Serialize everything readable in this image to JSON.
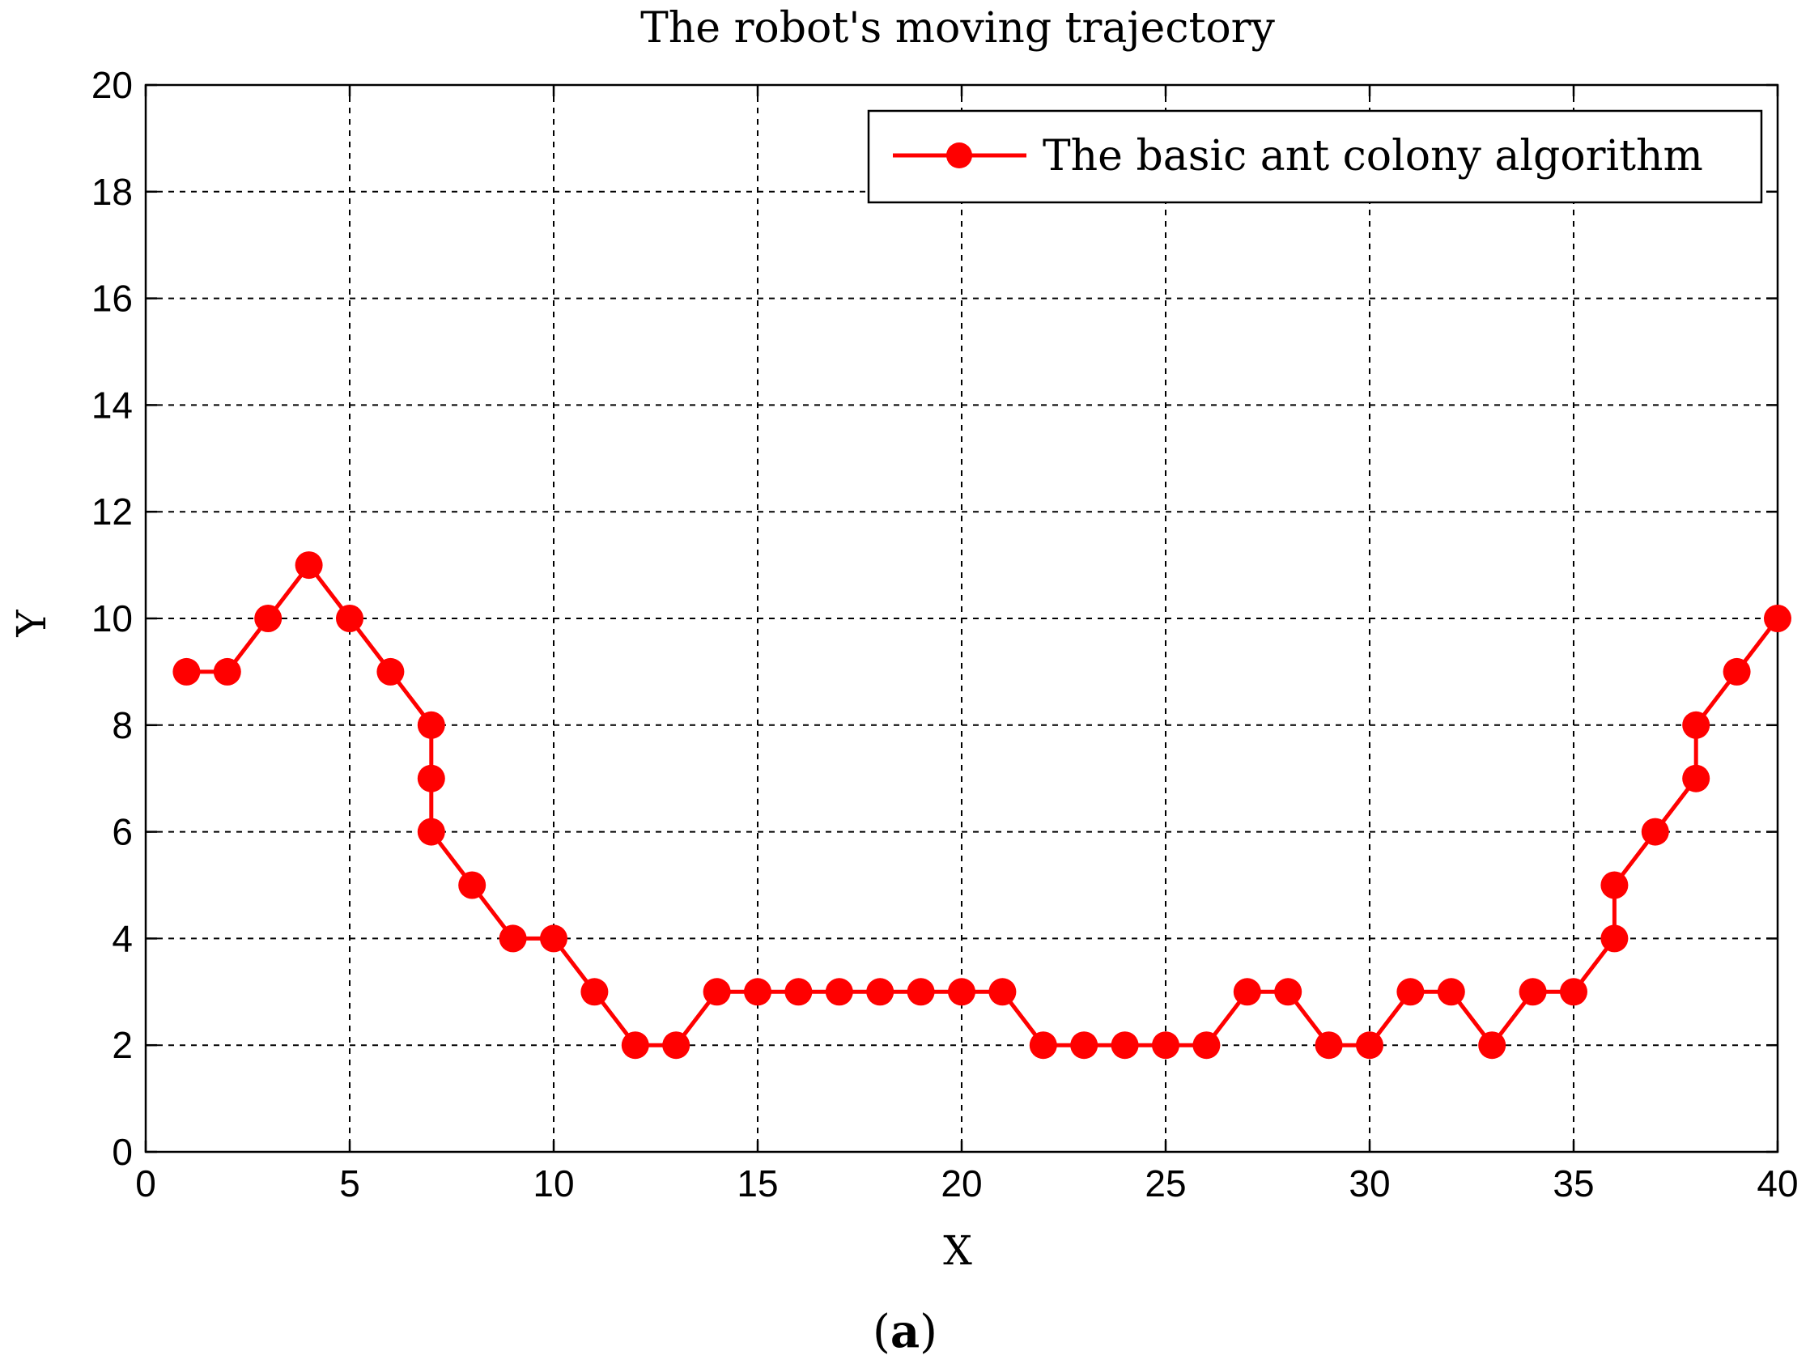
{
  "chart_data": {
    "type": "line",
    "title": "The robot's moving trajectory",
    "xlabel": "X",
    "ylabel": "Y",
    "xlim": [
      0,
      40
    ],
    "ylim": [
      0,
      20
    ],
    "xticks": [
      0,
      5,
      10,
      15,
      20,
      25,
      30,
      35,
      40
    ],
    "yticks": [
      0,
      2,
      4,
      6,
      8,
      10,
      12,
      14,
      16,
      18,
      20
    ],
    "grid": true,
    "legend_position": "top-right",
    "series": [
      {
        "name": "The basic ant colony algorithm",
        "color": "#ff0000",
        "marker": "circle",
        "x": [
          1,
          2,
          3,
          4,
          5,
          6,
          7,
          7,
          7,
          8,
          9,
          10,
          11,
          12,
          13,
          14,
          15,
          16,
          17,
          18,
          19,
          20,
          21,
          22,
          23,
          24,
          25,
          26,
          27,
          28,
          29,
          30,
          31,
          32,
          33,
          34,
          35,
          36,
          36,
          37,
          38,
          38,
          39,
          40
        ],
        "y": [
          9,
          9,
          10,
          11,
          10,
          9,
          8,
          7,
          6,
          5,
          4,
          4,
          3,
          2,
          2,
          3,
          3,
          3,
          3,
          3,
          3,
          3,
          3,
          2,
          2,
          2,
          2,
          2,
          3,
          3,
          2,
          2,
          3,
          3,
          2,
          3,
          3,
          4,
          5,
          6,
          7,
          8,
          9,
          10
        ]
      }
    ]
  },
  "caption": {
    "open": "(",
    "letter": "a",
    "close": ")"
  }
}
